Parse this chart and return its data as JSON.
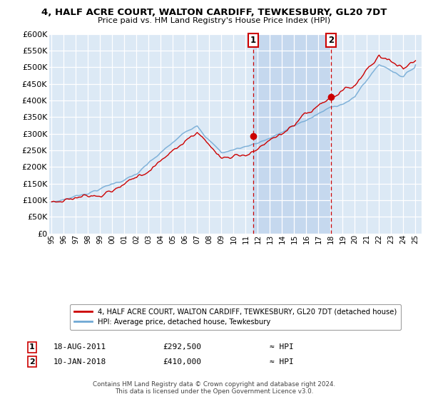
{
  "title": "4, HALF ACRE COURT, WALTON CARDIFF, TEWKESBURY, GL20 7DT",
  "subtitle": "Price paid vs. HM Land Registry's House Price Index (HPI)",
  "bg_color": "#dce9f5",
  "shaded_color": "#c5d8ee",
  "hpi_color": "#6fa8d4",
  "price_color": "#cc0000",
  "ylim": [
    0,
    600000
  ],
  "yticks": [
    0,
    50000,
    100000,
    150000,
    200000,
    250000,
    300000,
    350000,
    400000,
    450000,
    500000,
    550000,
    600000
  ],
  "legend_line1": "4, HALF ACRE COURT, WALTON CARDIFF, TEWKESBURY, GL20 7DT (detached house)",
  "legend_line2": "HPI: Average price, detached house, Tewkesbury",
  "annotation1_date": "18-AUG-2011",
  "annotation1_price": "£292,500",
  "annotation1_hpi": "≈ HPI",
  "annotation2_date": "10-JAN-2018",
  "annotation2_price": "£410,000",
  "annotation2_hpi": "≈ HPI",
  "footer": "Contains HM Land Registry data © Crown copyright and database right 2024.\nThis data is licensed under the Open Government Licence v3.0."
}
